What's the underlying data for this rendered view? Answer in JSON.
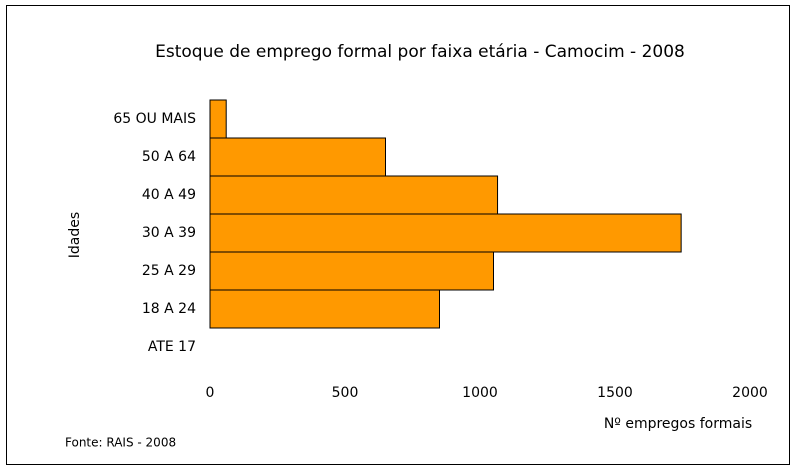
{
  "chart_data": {
    "type": "barh",
    "title": "Estoque de emprego formal por faixa etária - Camocim - 2008",
    "y_label": "Idades",
    "x_label": "Nº empregos formais",
    "source": "Fonte: RAIS - 2008",
    "categories": [
      "65 OU MAIS",
      "50 A 64",
      "40 A 49",
      "30 A 39",
      "25 A 29",
      "18 A 24",
      "ATE 17"
    ],
    "values": [
      60,
      650,
      1065,
      1745,
      1050,
      850,
      0
    ],
    "color": "#ff9900",
    "xlim": [
      0,
      2000
    ],
    "xticks": [
      0,
      500,
      1000,
      1500,
      2000
    ]
  }
}
